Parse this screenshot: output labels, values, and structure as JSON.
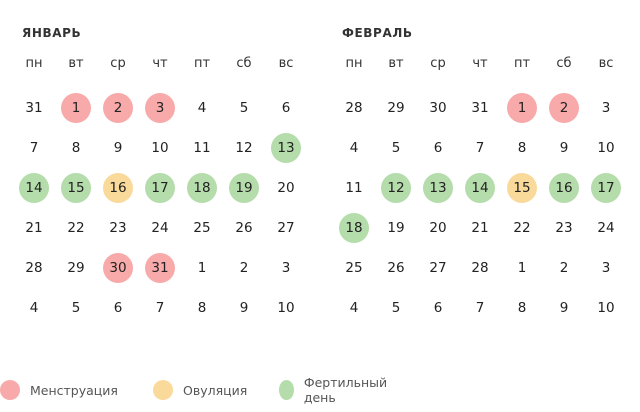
{
  "colors": {
    "menstruation": "#F8AAAA",
    "ovulation": "#F9DA9A",
    "fertile": "#B5DCAB"
  },
  "weekdays": [
    "пн",
    "вт",
    "ср",
    "чт",
    "пт",
    "сб",
    "вс"
  ],
  "months": [
    {
      "title": "ЯНВАРЬ",
      "weeks": [
        [
          {
            "d": "31"
          },
          {
            "d": "1",
            "t": "menstruation"
          },
          {
            "d": "2",
            "t": "menstruation"
          },
          {
            "d": "3",
            "t": "menstruation"
          },
          {
            "d": "4"
          },
          {
            "d": "5"
          },
          {
            "d": "6"
          }
        ],
        [
          {
            "d": "7"
          },
          {
            "d": "8"
          },
          {
            "d": "9"
          },
          {
            "d": "10"
          },
          {
            "d": "11"
          },
          {
            "d": "12"
          },
          {
            "d": "13",
            "t": "fertile"
          }
        ],
        [
          {
            "d": "14",
            "t": "fertile"
          },
          {
            "d": "15",
            "t": "fertile"
          },
          {
            "d": "16",
            "t": "ovulation"
          },
          {
            "d": "17",
            "t": "fertile"
          },
          {
            "d": "18",
            "t": "fertile"
          },
          {
            "d": "19",
            "t": "fertile"
          },
          {
            "d": "20"
          }
        ],
        [
          {
            "d": "21"
          },
          {
            "d": "22"
          },
          {
            "d": "23"
          },
          {
            "d": "24"
          },
          {
            "d": "25"
          },
          {
            "d": "26"
          },
          {
            "d": "27"
          }
        ],
        [
          {
            "d": "28"
          },
          {
            "d": "29"
          },
          {
            "d": "30",
            "t": "menstruation"
          },
          {
            "d": "31",
            "t": "menstruation"
          },
          {
            "d": "1"
          },
          {
            "d": "2"
          },
          {
            "d": "3"
          }
        ],
        [
          {
            "d": "4"
          },
          {
            "d": "5"
          },
          {
            "d": "6"
          },
          {
            "d": "7"
          },
          {
            "d": "8"
          },
          {
            "d": "9"
          },
          {
            "d": "10"
          }
        ]
      ]
    },
    {
      "title": "ФЕВРАЛЬ",
      "weeks": [
        [
          {
            "d": "28"
          },
          {
            "d": "29"
          },
          {
            "d": "30"
          },
          {
            "d": "31"
          },
          {
            "d": "1",
            "t": "menstruation"
          },
          {
            "d": "2",
            "t": "menstruation"
          },
          {
            "d": "3"
          }
        ],
        [
          {
            "d": "4"
          },
          {
            "d": "5"
          },
          {
            "d": "6"
          },
          {
            "d": "7"
          },
          {
            "d": "8"
          },
          {
            "d": "9"
          },
          {
            "d": "10"
          }
        ],
        [
          {
            "d": "11"
          },
          {
            "d": "12",
            "t": "fertile"
          },
          {
            "d": "13",
            "t": "fertile"
          },
          {
            "d": "14",
            "t": "fertile"
          },
          {
            "d": "15",
            "t": "ovulation"
          },
          {
            "d": "16",
            "t": "fertile"
          },
          {
            "d": "17",
            "t": "fertile"
          }
        ],
        [
          {
            "d": "18",
            "t": "fertile"
          },
          {
            "d": "19"
          },
          {
            "d": "20"
          },
          {
            "d": "21"
          },
          {
            "d": "22"
          },
          {
            "d": "23"
          },
          {
            "d": "24"
          }
        ],
        [
          {
            "d": "25"
          },
          {
            "d": "26"
          },
          {
            "d": "27"
          },
          {
            "d": "28"
          },
          {
            "d": "1"
          },
          {
            "d": "2"
          },
          {
            "d": "3"
          }
        ],
        [
          {
            "d": "4"
          },
          {
            "d": "5"
          },
          {
            "d": "6"
          },
          {
            "d": "7"
          },
          {
            "d": "8"
          },
          {
            "d": "9"
          },
          {
            "d": "10"
          }
        ]
      ]
    }
  ],
  "legend": [
    {
      "key": "menstruation",
      "label": "Менструация",
      "icon": "pink-circle-icon"
    },
    {
      "key": "ovulation",
      "label": "Овуляция",
      "icon": "yellow-circle-icon"
    },
    {
      "key": "fertile",
      "label": "Фертильный день",
      "icon": "green-circle-icon"
    }
  ]
}
